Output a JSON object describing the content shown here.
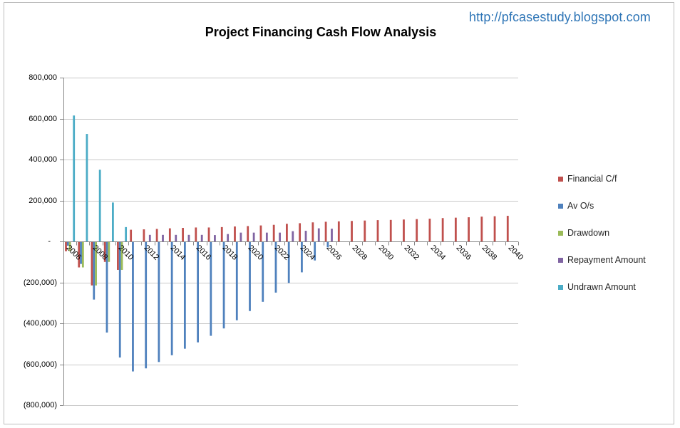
{
  "header": {
    "url": "http://pfcasestudy.blogspot.com"
  },
  "chart_data": {
    "type": "bar",
    "title": "Project Financing Cash Flow Analysis",
    "xlabel": "",
    "ylabel": "",
    "ylim": [
      -800000,
      800000
    ],
    "yticks": [
      800000,
      600000,
      400000,
      200000,
      0,
      -200000,
      -400000,
      -600000,
      -800000
    ],
    "ytick_labels": [
      "800,000",
      "600,000",
      "400,000",
      "200,000",
      "-",
      "(200,000)",
      "(400,000)",
      "(600,000)",
      "(800,000)"
    ],
    "grid": true,
    "legend_position": "right",
    "xtick_label_step": 2,
    "xtick_label_rotation": 45,
    "categories": [
      "2006",
      "2007",
      "2008",
      "2009",
      "2010",
      "2011",
      "2012",
      "2013",
      "2014",
      "2015",
      "2016",
      "2017",
      "2018",
      "2019",
      "2020",
      "2021",
      "2022",
      "2023",
      "2024",
      "2025",
      "2026",
      "2027",
      "2028",
      "2029",
      "2030",
      "2031",
      "2032",
      "2033",
      "2034",
      "2035",
      "2036",
      "2037",
      "2038",
      "2039",
      "2040"
    ],
    "series": [
      {
        "name": "Financial C/f",
        "color": "#C0504D",
        "values": [
          -48000,
          -127000,
          -215000,
          -100000,
          -139000,
          57000,
          59000,
          61000,
          64000,
          66000,
          68000,
          68000,
          70000,
          73000,
          75000,
          78000,
          81000,
          86000,
          89000,
          93000,
          96000,
          98000,
          100000,
          102000,
          104000,
          105000,
          107000,
          109000,
          111000,
          114000,
          116000,
          118000,
          121000,
          123000,
          125000
        ]
      },
      {
        "name": "Av O/s",
        "color": "#4F81BD",
        "values": [
          -21000,
          -110000,
          -284000,
          -445000,
          -567000,
          -635000,
          -620000,
          -589000,
          -556000,
          -524000,
          -493000,
          -461000,
          -425000,
          -385000,
          -340000,
          -295000,
          -250000,
          -203000,
          -151000,
          -93000,
          -29000,
          0,
          0,
          0,
          0,
          0,
          0,
          0,
          0,
          0,
          0,
          0,
          0,
          0,
          0
        ]
      },
      {
        "name": "Drawdown",
        "color": "#9BBB59",
        "values": [
          -48000,
          -127000,
          -215000,
          -100000,
          -139000,
          0,
          0,
          0,
          0,
          0,
          0,
          0,
          0,
          0,
          0,
          0,
          0,
          0,
          0,
          0,
          0,
          0,
          0,
          0,
          0,
          0,
          0,
          0,
          0,
          0,
          0,
          0,
          0,
          0,
          0
        ]
      },
      {
        "name": "Repayment Amount",
        "color": "#8064A2",
        "values": [
          0,
          0,
          0,
          0,
          0,
          0,
          32000,
          32000,
          32000,
          32000,
          32000,
          31000,
          36000,
          43000,
          43000,
          43000,
          43000,
          50000,
          52000,
          64000,
          62000,
          0,
          0,
          0,
          0,
          0,
          0,
          0,
          0,
          0,
          0,
          0,
          0,
          0,
          0
        ]
      },
      {
        "name": "Undrawn Amount",
        "color": "#4BACC6",
        "values": [
          615000,
          525000,
          350000,
          190000,
          70000,
          0,
          0,
          0,
          0,
          0,
          0,
          0,
          0,
          0,
          0,
          0,
          0,
          0,
          0,
          0,
          0,
          0,
          0,
          0,
          0,
          0,
          0,
          0,
          0,
          0,
          0,
          0,
          0,
          0,
          0
        ]
      }
    ]
  }
}
